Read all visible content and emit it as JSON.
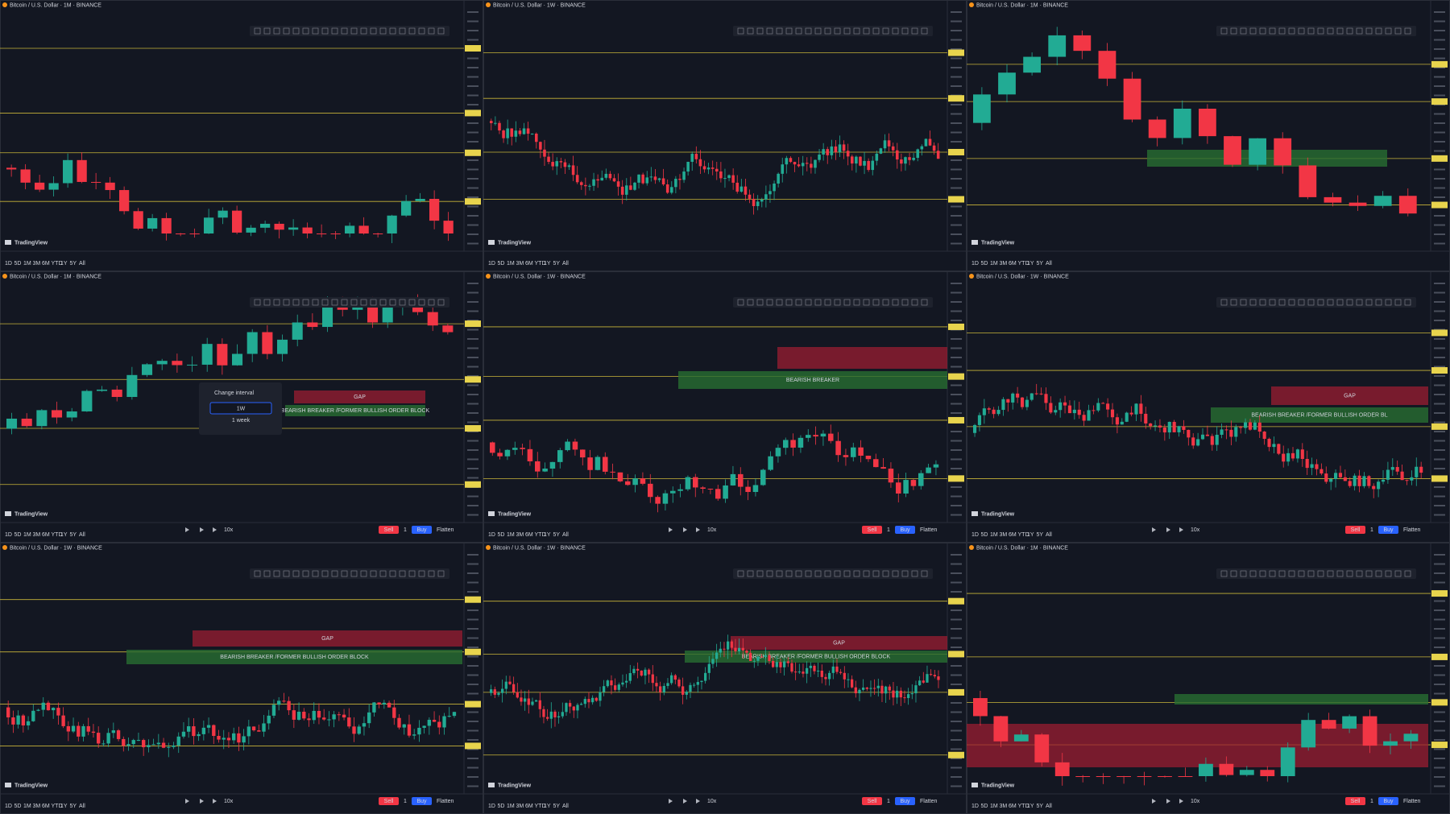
{
  "timeframes": [
    "1D",
    "5D",
    "1M",
    "3M",
    "6M",
    "YTD",
    "1Y",
    "5Y",
    "All"
  ],
  "replay": {
    "speed": "10x",
    "sell": "Sell",
    "quantity": "1",
    "buy": "Buy",
    "flatten": "Flatten"
  },
  "dialog": {
    "title": "Change interval",
    "input": "1W",
    "hint": "1 week"
  },
  "panels": [
    {
      "title": "Bitcoin / U.S. Dollar · 1M · BINANCE",
      "logo": "TradingView",
      "zones": []
    },
    {
      "title": "Bitcoin / U.S. Dollar · 1W · BINANCE",
      "logo": "TradingView",
      "zones": []
    },
    {
      "title": "Bitcoin / U.S. Dollar · 1M · BINANCE",
      "logo": "TradingView",
      "zones": []
    },
    {
      "title": "Bitcoin / U.S. Dollar · 1M · BINANCE",
      "logo": "TradingView",
      "zones": [
        "GAP",
        "BEARISH BREAKER /FORMER BULLISH ORDER BLOCK"
      ]
    },
    {
      "title": "Bitcoin / U.S. Dollar · 1W · BINANCE",
      "logo": "TradingView",
      "zones": [
        "BEARISH BREAKER"
      ]
    },
    {
      "title": "Bitcoin / U.S. Dollar · 1W · BINANCE",
      "logo": "TradingView",
      "zones": [
        "GAP",
        "BEARISH BREAKER /FORMER BULLISH ORDER BL"
      ]
    },
    {
      "title": "Bitcoin / U.S. Dollar · 1W · BINANCE",
      "logo": "TradingView",
      "zones": [
        "GAP",
        "BEARISH BREAKER /FORMER BULLISH ORDER BLOCK"
      ]
    },
    {
      "title": "Bitcoin / U.S. Dollar · 1W · BINANCE",
      "logo": "TradingView",
      "zones": [
        "GAP",
        "BEARISH BREAKER /FORMER BULLISH ORDER BLOCK"
      ]
    },
    {
      "title": "Bitcoin / U.S. Dollar · 1M · BINANCE",
      "logo": "TradingView",
      "zones": []
    }
  ]
}
